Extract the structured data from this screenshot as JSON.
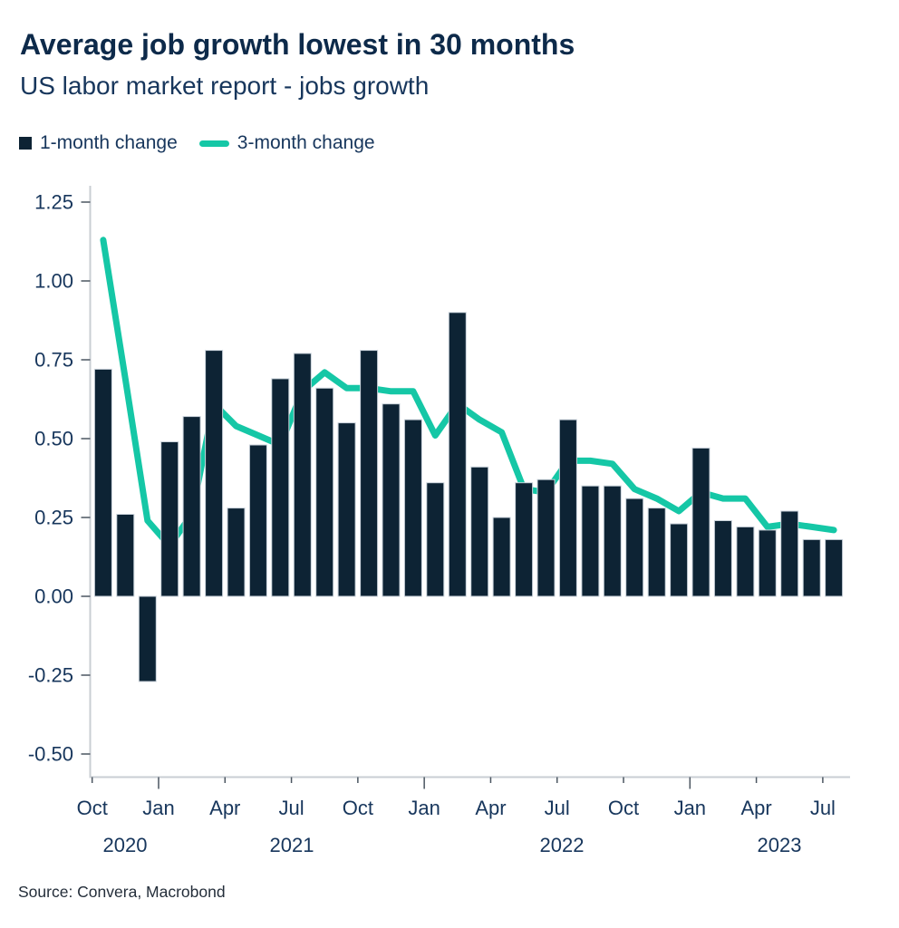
{
  "header": {
    "title": "Average job growth lowest in 30 months",
    "subtitle": "US labor market report - jobs growth"
  },
  "legend": {
    "items": [
      {
        "label": "1-month change",
        "marker": "square",
        "color": "#0d2334"
      },
      {
        "label": "3-month change",
        "marker": "line",
        "color": "#15c7a6"
      }
    ]
  },
  "source": "Source: Convera, Macrobond",
  "colors": {
    "bar": "#0d2334",
    "bar_outline": "#c9d2da",
    "line": "#15c7a6",
    "axis_line": "#c9ced3",
    "tick": "#4a5560",
    "label_text": "#17365c",
    "title_text": "#0d2a4a"
  },
  "chart_data": {
    "type": "bar",
    "title": "Average job growth lowest in 30 months",
    "subtitle": "US labor market report - jobs growth",
    "x": [
      "Oct 2020",
      "Nov 2020",
      "Dec 2020",
      "Jan 2021",
      "Feb 2021",
      "Mar 2021",
      "Apr 2021",
      "May 2021",
      "Jun 2021",
      "Jul 2021",
      "Aug 2021",
      "Sep 2021",
      "Oct 2021",
      "Nov 2021",
      "Dec 2021",
      "Jan 2022",
      "Feb 2022",
      "Mar 2022",
      "Apr 2022",
      "May 2022",
      "Jun 2022",
      "Jul 2022",
      "Aug 2022",
      "Sep 2022",
      "Oct 2022",
      "Nov 2022",
      "Dec 2022",
      "Jan 2023",
      "Feb 2023",
      "Mar 2023",
      "Apr 2023",
      "May 2023",
      "Jun 2023",
      "Jul 2023"
    ],
    "series": [
      {
        "name": "1-month change",
        "kind": "bar",
        "color": "#0d2334",
        "values": [
          0.72,
          0.26,
          -0.27,
          0.49,
          0.57,
          0.78,
          0.28,
          0.48,
          0.69,
          0.77,
          0.66,
          0.55,
          0.78,
          0.61,
          0.56,
          0.36,
          0.9,
          0.41,
          0.25,
          0.36,
          0.37,
          0.56,
          0.35,
          0.35,
          0.31,
          0.28,
          0.23,
          0.47,
          0.24,
          0.22,
          0.21,
          0.27,
          0.18,
          0.18
        ]
      },
      {
        "name": "3-month change",
        "kind": "line",
        "color": "#15c7a6",
        "values": [
          1.13,
          0.69,
          0.24,
          0.16,
          0.26,
          0.61,
          0.54,
          0.51,
          0.48,
          0.65,
          0.71,
          0.66,
          0.66,
          0.65,
          0.65,
          0.51,
          0.61,
          0.56,
          0.52,
          0.34,
          0.33,
          0.43,
          0.43,
          0.42,
          0.34,
          0.31,
          0.27,
          0.33,
          0.31,
          0.31,
          0.22,
          0.23,
          0.22,
          0.21
        ]
      }
    ],
    "ylim": [
      -0.5,
      1.25
    ],
    "grid": "off",
    "legend_position": "top-left",
    "y_ticks": [
      {
        "label": "1.25",
        "value": 1.25
      },
      {
        "label": "1.00",
        "value": 1.0
      },
      {
        "label": "0.75",
        "value": 0.75
      },
      {
        "label": "0.50",
        "value": 0.5
      },
      {
        "label": "0.25",
        "value": 0.25
      },
      {
        "label": "0.00",
        "value": 0.0
      },
      {
        "label": "-0.25",
        "value": -0.25
      },
      {
        "label": "-0.50",
        "value": -0.5
      }
    ],
    "x_ticks": [
      {
        "label": "Oct",
        "month_index": 0,
        "long": false
      },
      {
        "label": "Jan",
        "month_index": 3,
        "long": true
      },
      {
        "label": "Apr",
        "month_index": 6,
        "long": false
      },
      {
        "label": "Jul",
        "month_index": 9,
        "long": false
      },
      {
        "label": "Oct",
        "month_index": 12,
        "long": false
      },
      {
        "label": "Jan",
        "month_index": 15,
        "long": true
      },
      {
        "label": "Apr",
        "month_index": 18,
        "long": false
      },
      {
        "label": "Jul",
        "month_index": 21,
        "long": false
      },
      {
        "label": "Oct",
        "month_index": 24,
        "long": false
      },
      {
        "label": "Jan",
        "month_index": 27,
        "long": true
      },
      {
        "label": "Apr",
        "month_index": 30,
        "long": false
      },
      {
        "label": "Jul",
        "month_index": 33,
        "long": false
      }
    ],
    "years": [
      {
        "label": "2020",
        "first_month": 0,
        "last_month": 2
      },
      {
        "label": "2021",
        "first_month": 3,
        "last_month": 14
      },
      {
        "label": "2022",
        "first_month": 15,
        "last_month": 26
      },
      {
        "label": "2023",
        "first_month": 27,
        "last_month": 33
      }
    ]
  }
}
